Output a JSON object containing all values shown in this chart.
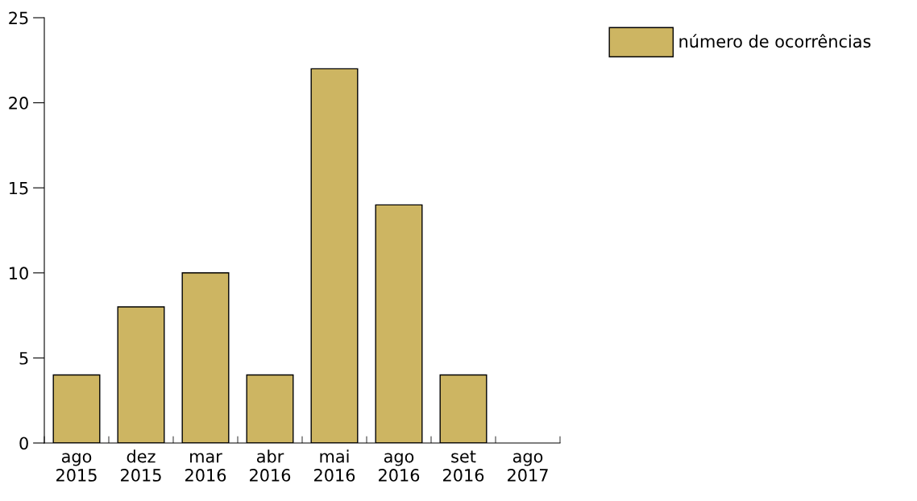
{
  "chart_data": {
    "type": "bar",
    "categories": [
      "ago\n2015",
      "dez\n2015",
      "mar\n2016",
      "abr\n2016",
      "mai\n2016",
      "ago\n2016",
      "set\n2016",
      "ago\n2017"
    ],
    "series": [
      {
        "name": "número de ocorrências",
        "color": "#cdb562",
        "values": [
          4,
          8,
          10,
          4,
          22,
          14,
          4,
          0
        ]
      }
    ],
    "ylim": [
      0,
      25
    ],
    "yticks": [
      0,
      5,
      10,
      15,
      20,
      25
    ],
    "grid": false,
    "legend": "top right"
  }
}
